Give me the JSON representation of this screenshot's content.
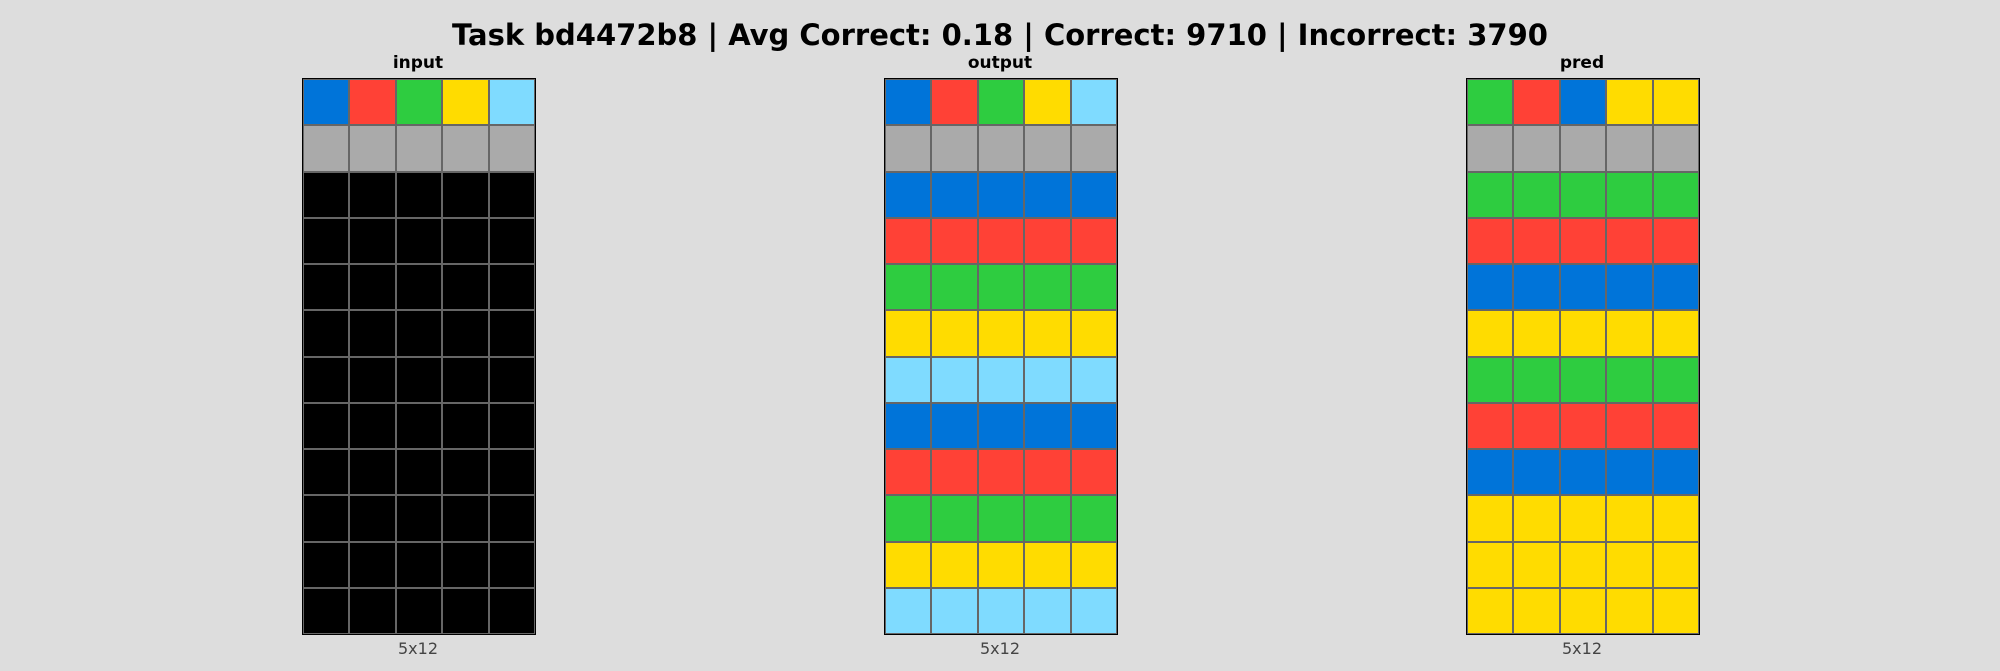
{
  "title": "Task bd4472b8 | Avg Correct: 0.18 | Correct: 9710 | Incorrect: 3790",
  "colors": {
    "0": "#000000",
    "1": "#0074D9",
    "2": "#FF4136",
    "3": "#2ECC40",
    "4": "#FFDC00",
    "5": "#AAAAAA",
    "8": "#7FDBFF"
  },
  "panels": [
    {
      "label": "input",
      "dims": "5x12",
      "grid": [
        [
          1,
          2,
          3,
          4,
          8
        ],
        [
          5,
          5,
          5,
          5,
          5
        ],
        [
          0,
          0,
          0,
          0,
          0
        ],
        [
          0,
          0,
          0,
          0,
          0
        ],
        [
          0,
          0,
          0,
          0,
          0
        ],
        [
          0,
          0,
          0,
          0,
          0
        ],
        [
          0,
          0,
          0,
          0,
          0
        ],
        [
          0,
          0,
          0,
          0,
          0
        ],
        [
          0,
          0,
          0,
          0,
          0
        ],
        [
          0,
          0,
          0,
          0,
          0
        ],
        [
          0,
          0,
          0,
          0,
          0
        ],
        [
          0,
          0,
          0,
          0,
          0
        ]
      ]
    },
    {
      "label": "output",
      "dims": "5x12",
      "grid": [
        [
          1,
          2,
          3,
          4,
          8
        ],
        [
          5,
          5,
          5,
          5,
          5
        ],
        [
          1,
          1,
          1,
          1,
          1
        ],
        [
          2,
          2,
          2,
          2,
          2
        ],
        [
          3,
          3,
          3,
          3,
          3
        ],
        [
          4,
          4,
          4,
          4,
          4
        ],
        [
          8,
          8,
          8,
          8,
          8
        ],
        [
          1,
          1,
          1,
          1,
          1
        ],
        [
          2,
          2,
          2,
          2,
          2
        ],
        [
          3,
          3,
          3,
          3,
          3
        ],
        [
          4,
          4,
          4,
          4,
          4
        ],
        [
          8,
          8,
          8,
          8,
          8
        ]
      ]
    },
    {
      "label": "pred",
      "dims": "5x12",
      "grid": [
        [
          3,
          2,
          1,
          4,
          4
        ],
        [
          5,
          5,
          5,
          5,
          5
        ],
        [
          3,
          3,
          3,
          3,
          3
        ],
        [
          2,
          2,
          2,
          2,
          2
        ],
        [
          1,
          1,
          1,
          1,
          1
        ],
        [
          4,
          4,
          4,
          4,
          4
        ],
        [
          3,
          3,
          3,
          3,
          3
        ],
        [
          2,
          2,
          2,
          2,
          2
        ],
        [
          1,
          1,
          1,
          1,
          1
        ],
        [
          4,
          4,
          4,
          4,
          4
        ],
        [
          4,
          4,
          4,
          4,
          4
        ],
        [
          4,
          4,
          4,
          4,
          4
        ]
      ]
    }
  ]
}
